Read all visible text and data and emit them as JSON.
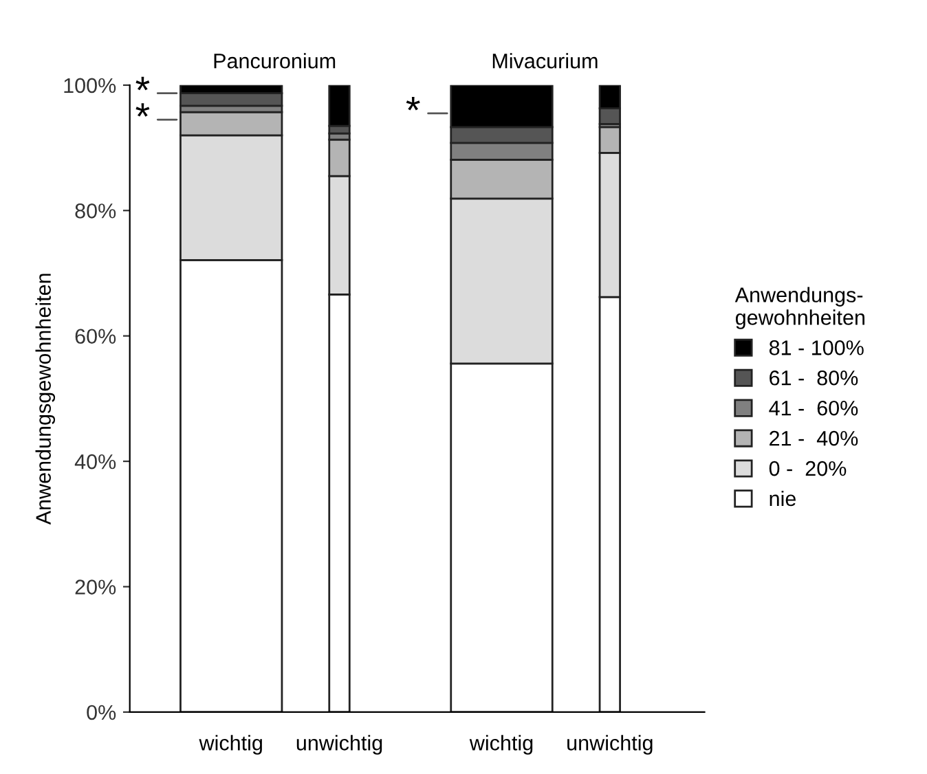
{
  "chart_data": {
    "type": "bar",
    "stacked": true,
    "ylabel": "Anwendungsgewohnheiten",
    "legend_title": "Anwendungs-\ngewohnheiten",
    "legend": "right",
    "grid": false,
    "categories": [
      "wichtig",
      "unwichtig",
      "wichtig",
      "unwichtig"
    ],
    "series": [
      {
        "name": "nie",
        "color": "#ffffff",
        "values": [
          72.1,
          66.6,
          55.6,
          66.2
        ]
      },
      {
        "name": "0 -  20%",
        "color": "#dcdcdc",
        "values": [
          19.9,
          18.9,
          26.3,
          23.0
        ]
      },
      {
        "name": "21 -  40%",
        "color": "#b4b4b4",
        "values": [
          3.7,
          5.8,
          6.2,
          4.1
        ]
      },
      {
        "name": "41 -  60%",
        "color": "#808080",
        "values": [
          1.0,
          1.0,
          2.7,
          0.5
        ]
      },
      {
        "name": "61 -  80%",
        "color": "#555555",
        "values": [
          2.0,
          1.2,
          2.5,
          2.5
        ]
      },
      {
        "name": "81 - 100%",
        "color": "#000000",
        "values": [
          1.3,
          6.5,
          6.7,
          3.7
        ]
      }
    ],
    "ylim": [
      0,
      100
    ],
    "yticks": [
      {
        "value": 0,
        "label": "0%"
      },
      {
        "value": 20,
        "label": "20%"
      },
      {
        "value": 40,
        "label": "40%"
      },
      {
        "value": 60,
        "label": "60%"
      },
      {
        "value": 80,
        "label": "80%"
      },
      {
        "value": 100,
        "label": "100%"
      }
    ],
    "annotations": [
      "Pancuronium",
      "Mivacurium",
      "*",
      "*",
      "*"
    ]
  }
}
